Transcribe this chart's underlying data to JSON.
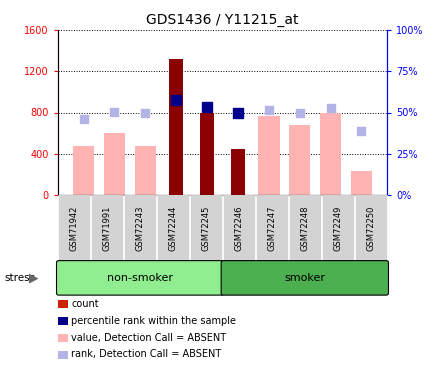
{
  "title": "GDS1436 / Y11215_at",
  "samples": [
    "GSM71942",
    "GSM71991",
    "GSM72243",
    "GSM72244",
    "GSM72245",
    "GSM72246",
    "GSM72247",
    "GSM72248",
    "GSM72249",
    "GSM72250"
  ],
  "count_values": [
    null,
    null,
    null,
    1320,
    800,
    450,
    null,
    null,
    null,
    null
  ],
  "percentile_rank_pct": [
    null,
    null,
    null,
    57.5,
    53.5,
    49.5,
    null,
    null,
    null,
    null
  ],
  "absent_value": [
    480,
    600,
    480,
    null,
    null,
    null,
    770,
    680,
    800,
    230
  ],
  "absent_rank_pct": [
    46,
    50.5,
    49.5,
    null,
    null,
    null,
    51.5,
    49.5,
    53,
    38.5
  ],
  "groups": [
    {
      "label": "non-smoker",
      "start": 0,
      "end": 5,
      "color": "#90ee90"
    },
    {
      "label": "smoker",
      "start": 5,
      "end": 10,
      "color": "#4caf50"
    }
  ],
  "ylim_left": [
    0,
    1600
  ],
  "ylim_right": [
    0,
    100
  ],
  "yticks_left": [
    0,
    400,
    800,
    1200,
    1600
  ],
  "yticklabels_left": [
    "0",
    "400",
    "800",
    "1200",
    "1600"
  ],
  "yticks_right": [
    0,
    25,
    50,
    75,
    100
  ],
  "yticklabels_right": [
    "0%",
    "25%",
    "50%",
    "75%",
    "100%"
  ],
  "color_count": "#8B0000",
  "color_rank": "#00008B",
  "color_absent_value": "#ffb3b3",
  "color_absent_rank": "#b3b3e6",
  "legend_items": [
    {
      "label": "count",
      "color": "#cc2200"
    },
    {
      "label": "percentile rank within the sample",
      "color": "#00008B"
    },
    {
      "label": "value, Detection Call = ABSENT",
      "color": "#ffb3b3"
    },
    {
      "label": "rank, Detection Call = ABSENT",
      "color": "#b3b3e6"
    }
  ]
}
